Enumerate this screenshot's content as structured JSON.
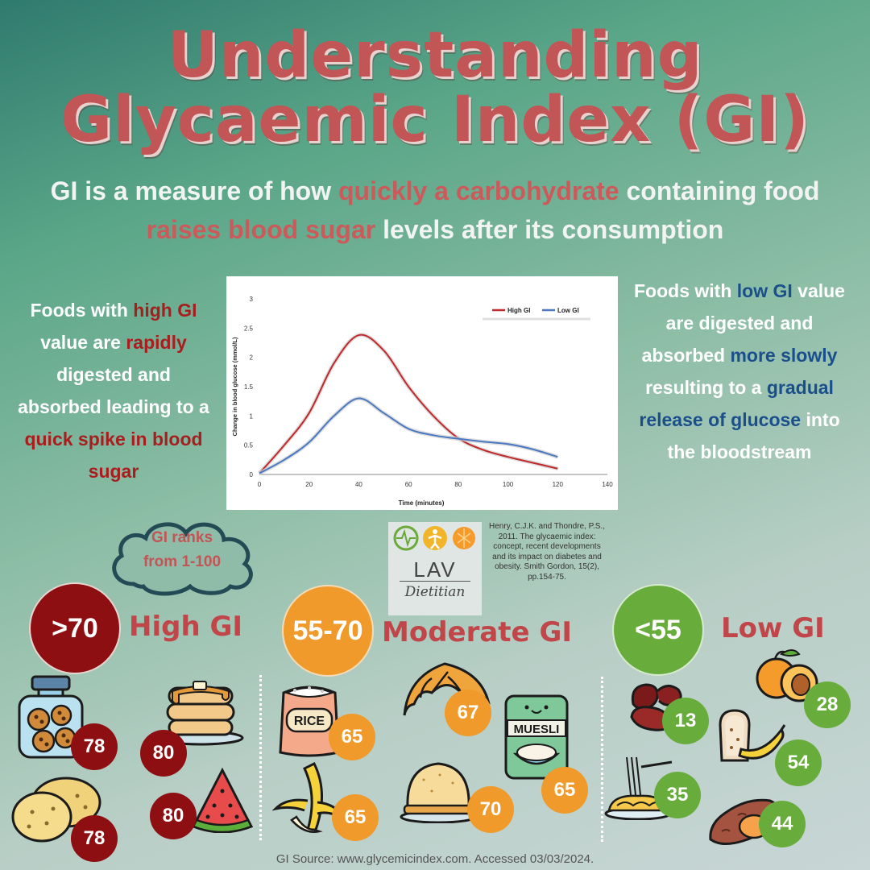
{
  "title": {
    "line1": "Understanding",
    "line2": "Glycaemic Index (GI)"
  },
  "intro": {
    "p1": "GI is a measure of how ",
    "h1": "quickly a carbohydrate",
    "p2": " containing food ",
    "h2": "raises blood sugar",
    "p3": " levels after its consumption"
  },
  "left_text": {
    "t1": "Foods with ",
    "h1": "high GI",
    "t2": " value are ",
    "h2": "rapidly",
    "t3": " digested and absorbed leading to a ",
    "h3": "quick spike in blood sugar"
  },
  "right_text": {
    "t1": "Foods with ",
    "h1": "low GI",
    "t2": " value are digested and absorbed ",
    "h2": "more slowly",
    "t3": " resulting to a ",
    "h3": "gradual release of glucose",
    "t4": " into the bloodstream"
  },
  "chart_data": {
    "type": "line",
    "xlabel": "Time (minutes)",
    "ylabel": "Change in blood glucose (mmol/L)",
    "xlim": [
      0,
      140
    ],
    "ylim": [
      0,
      3
    ],
    "xticks": [
      "0",
      "20",
      "40",
      "60",
      "80",
      "100",
      "120",
      "140"
    ],
    "yticks": [
      "0",
      "0.5",
      "1",
      "1.5",
      "2",
      "2.5",
      "3"
    ],
    "legend": "top-right",
    "grid": false,
    "series": [
      {
        "name": "High GI",
        "color": "#c0282a",
        "x": [
          0,
          10,
          20,
          30,
          40,
          50,
          60,
          70,
          80,
          90,
          100,
          110,
          120
        ],
        "y": [
          0.02,
          0.5,
          1.05,
          1.9,
          2.38,
          2.12,
          1.5,
          1.0,
          0.62,
          0.42,
          0.3,
          0.2,
          0.1
        ]
      },
      {
        "name": "Low GI",
        "color": "#4a79c2",
        "x": [
          0,
          10,
          20,
          30,
          40,
          50,
          60,
          70,
          80,
          90,
          100,
          110,
          120
        ],
        "y": [
          0.02,
          0.25,
          0.55,
          1.0,
          1.3,
          1.05,
          0.78,
          0.67,
          0.61,
          0.56,
          0.52,
          0.43,
          0.3
        ]
      }
    ]
  },
  "cloud": {
    "line1": "GI ranks",
    "line2": "from 1-100"
  },
  "logo": {
    "text": "LAV",
    "script": "Dietitian"
  },
  "citation": "Henry, C.J.K. and Thondre, P.S., 2011. The glycaemic index: concept, recent developments and its impact on diabetes and obesity. Smith Gordon, 15(2), pp.154-75.",
  "categories": {
    "high": {
      "range": ">70",
      "label": "High GI",
      "color": "#8d0f12"
    },
    "moderate": {
      "range": "55-70",
      "label": "Moderate GI",
      "color": "#ef9a2a"
    },
    "low": {
      "range": "<55",
      "label": "Low GI",
      "color": "#68ad3c"
    }
  },
  "foods": {
    "cookies": {
      "icon": "cookie-jar-icon",
      "gi": "78"
    },
    "potatoes": {
      "icon": "potato-icon",
      "gi": "78"
    },
    "pancakes": {
      "icon": "pancakes-icon",
      "gi": "80"
    },
    "watermelon": {
      "icon": "watermelon-icon",
      "gi": "80"
    },
    "rice": {
      "icon": "rice-bag-icon",
      "gi": "65",
      "label": "RICE"
    },
    "banana": {
      "icon": "banana-icon",
      "gi": "65"
    },
    "croissant": {
      "icon": "croissant-icon",
      "gi": "67"
    },
    "bun": {
      "icon": "bun-icon",
      "gi": "70"
    },
    "muesli": {
      "icon": "muesli-box-icon",
      "gi": "65",
      "label": "MUESLI"
    },
    "beans": {
      "icon": "kidney-beans-icon",
      "gi": "13"
    },
    "spaghetti": {
      "icon": "spaghetti-icon",
      "gi": "35"
    },
    "apricot": {
      "icon": "apricot-icon",
      "gi": "28"
    },
    "bread_banana": {
      "icon": "bread-banana-icon",
      "gi": "54"
    },
    "sweet_potato": {
      "icon": "sweet-potato-icon",
      "gi": "44"
    }
  },
  "footer": "GI Source: www.glycemicindex.com. Accessed 03/03/2024."
}
